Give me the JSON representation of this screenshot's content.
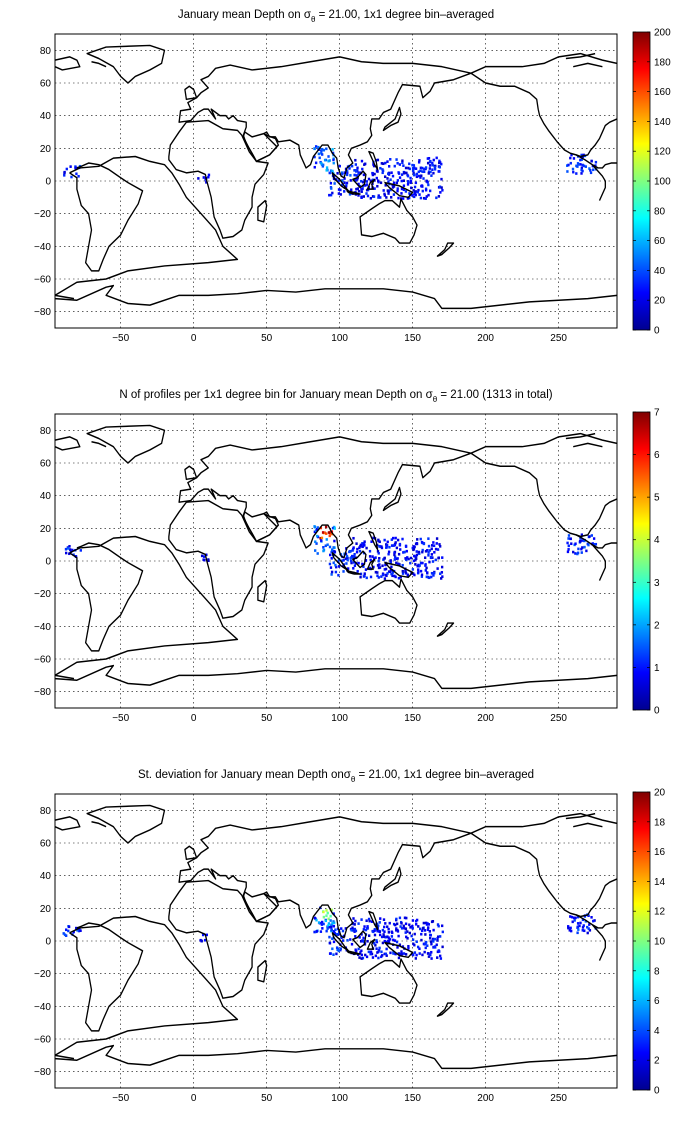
{
  "colormap": [
    "#00008f",
    "#0000ff",
    "#0080ff",
    "#00ffff",
    "#80ff80",
    "#ffff00",
    "#ff8000",
    "#ff0000",
    "#800000"
  ],
  "panels": [
    {
      "title_main": "January mean Depth on ",
      "title_sigma": "σ",
      "title_sub": "θ",
      "title_rest": " = 21.00, 1x1 degree bin–averaged",
      "x_ticks": [
        -50,
        0,
        50,
        100,
        150,
        200,
        250
      ],
      "y_ticks": [
        80,
        60,
        40,
        20,
        0,
        -20,
        -40,
        -60,
        -80
      ],
      "colorbar": {
        "min": 0,
        "max": 200,
        "ticks": [
          0,
          20,
          40,
          60,
          80,
          100,
          120,
          140,
          160,
          180,
          200
        ]
      },
      "hotspot_level": 0.25
    },
    {
      "title_main": "N of profiles per 1x1 degree bin for January mean Depth on ",
      "title_sigma": "σ",
      "title_sub": "θ",
      "title_rest": " = 21.00 (1313 in total)",
      "x_ticks": [
        -50,
        0,
        50,
        100,
        150,
        200,
        250
      ],
      "y_ticks": [
        80,
        60,
        40,
        20,
        0,
        -20,
        -40,
        -60,
        -80
      ],
      "colorbar": {
        "min": 0,
        "max": 7,
        "ticks": [
          0,
          1,
          2,
          3,
          4,
          5,
          6,
          7
        ]
      },
      "hotspot_level": 1.0
    },
    {
      "title_main": "St. deviation for January mean Depth on",
      "title_sigma": "σ",
      "title_sub": "θ",
      "title_rest": " = 21.00, 1x1 degree bin–averaged",
      "x_ticks": [
        -50,
        0,
        50,
        100,
        150,
        200,
        250
      ],
      "y_ticks": [
        80,
        60,
        40,
        20,
        0,
        -20,
        -40,
        -60,
        -80
      ],
      "colorbar": {
        "min": 0,
        "max": 20,
        "ticks": [
          0,
          2,
          4,
          6,
          8,
          10,
          12,
          14,
          16,
          18,
          20
        ]
      },
      "hotspot_level": 0.6
    }
  ],
  "map_extent": {
    "lon_range": [
      -95,
      290
    ],
    "lat_range": [
      -90,
      90
    ]
  },
  "data_clusters": [
    {
      "region": "Bay of Bengal",
      "lon": [
        82,
        96
      ],
      "lat": [
        5,
        22
      ],
      "level": 0.22
    },
    {
      "region": "Andaman Sea / Malay",
      "lon": [
        92,
        108
      ],
      "lat": [
        -8,
        10
      ],
      "level": 0.15
    },
    {
      "region": "Indonesia / W Pacific",
      "lon": [
        108,
        170
      ],
      "lat": [
        -10,
        15
      ],
      "level": 0.12
    },
    {
      "region": "Gulf of Guinea",
      "lon": [
        2,
        10
      ],
      "lat": [
        0,
        5
      ],
      "level": 0.1
    },
    {
      "region": "Panama Pacific",
      "lon": [
        -90,
        -78
      ],
      "lat": [
        3,
        10
      ],
      "level": 0.15
    },
    {
      "region": "Caribbean",
      "lon": [
        255,
        275
      ],
      "lat": [
        5,
        17
      ],
      "level": 0.15
    }
  ]
}
